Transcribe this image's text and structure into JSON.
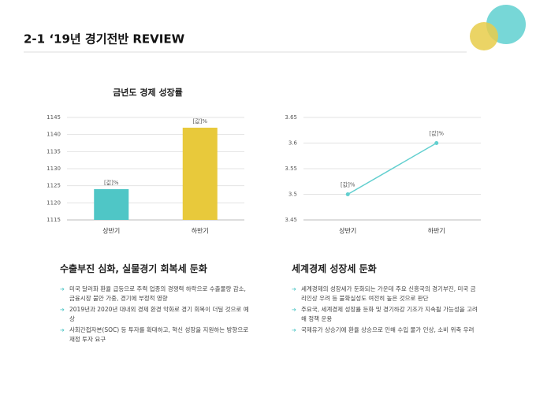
{
  "title": "2-1 ‘19년 경기전반 REVIEW",
  "chart_data": [
    {
      "type": "bar",
      "title": "금년도 경제 성장률",
      "categories": [
        "상반기",
        "하반기"
      ],
      "values": [
        1124,
        1142
      ],
      "value_labels": [
        "[값]%",
        "[값]%"
      ],
      "colors": [
        "#4fc6c6",
        "#e8c93b"
      ],
      "ylim": [
        1115,
        1145
      ],
      "yticks": [
        1115,
        1120,
        1125,
        1130,
        1135,
        1140,
        1145
      ],
      "grid": true
    },
    {
      "type": "line",
      "categories": [
        "상반기",
        "하반기"
      ],
      "values": [
        3.5,
        3.6
      ],
      "value_labels": [
        "[값]%",
        "[값]%"
      ],
      "color": "#62cfcf",
      "ylim": [
        3.45,
        3.65
      ],
      "yticks": [
        3.45,
        3.5,
        3.55,
        3.6,
        3.65
      ],
      "grid": true
    }
  ],
  "sections": [
    {
      "heading": "수출부진 심화, 실물경기 회복세 둔화",
      "bullets": [
        "미국 달러화 환율 급등으로 주력 업종의 경쟁력 하락으로 수출물량 감소, 금융시장 불안 가중, 경기에 부정적 영향",
        "2019년과 2020년 대내외 경제 환경 악화로 경기 회복이 더딜 것으로 예상",
        "사회간접자본(SOC) 등 투자를 확대하고, 혁신 성장을 지원하는 방향으로 재정 투자 요구"
      ]
    },
    {
      "heading": "세계경제 성장세 둔화",
      "bullets": [
        "세계경제의 성장세가 둔화되는 가운데 주요 신흥국의 경기부진, 미국 금리인상 우려 등 불확실성도 여전히 높은 것으로 판단",
        "주요국, 세계경제 성장률 둔화 및 경기하강 기조가 지속될 가능성을 고려해 정책 운용",
        "국제유가 상승기에 환율 상승으로 인해 수입 물가 인상, 소비 위축 우려"
      ]
    }
  ]
}
